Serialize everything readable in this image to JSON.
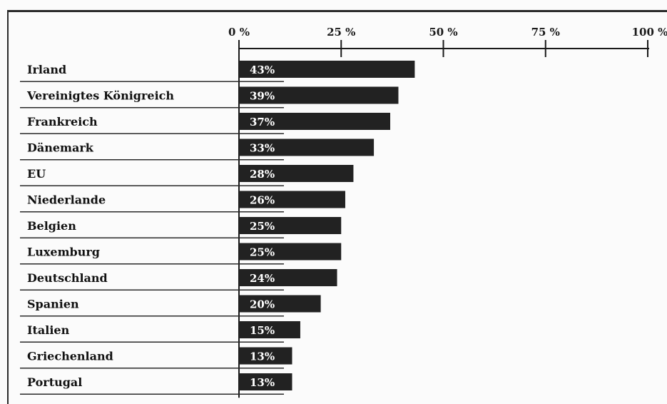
{
  "chart_data": {
    "type": "bar",
    "orientation": "horizontal",
    "categories": [
      "Irland",
      "Vereinigtes Königreich",
      "Frankreich",
      "Dänemark",
      "EU",
      "Niederlande",
      "Belgien",
      "Luxemburg",
      "Deutschland",
      "Spanien",
      "Italien",
      "Griechenland",
      "Portugal"
    ],
    "values": [
      43,
      39,
      37,
      33,
      28,
      26,
      25,
      25,
      24,
      20,
      15,
      13,
      13
    ],
    "data_labels": [
      "43%",
      "39%",
      "37%",
      "33%",
      "28%",
      "26%",
      "25%",
      "25%",
      "24%",
      "20%",
      "15%",
      "13%",
      "13%"
    ],
    "x_ticks": [
      {
        "value": 0,
        "label": "0 %"
      },
      {
        "value": 25,
        "label": "25 %"
      },
      {
        "value": 50,
        "label": "50 %"
      },
      {
        "value": 75,
        "label": "75 %"
      },
      {
        "value": 100,
        "label": "100 %"
      }
    ],
    "xlim": [
      0,
      100
    ],
    "axis_position": "top",
    "grid": false,
    "legend": "none",
    "title": "",
    "xlabel": "",
    "ylabel": "",
    "bar_color": "#222222"
  }
}
